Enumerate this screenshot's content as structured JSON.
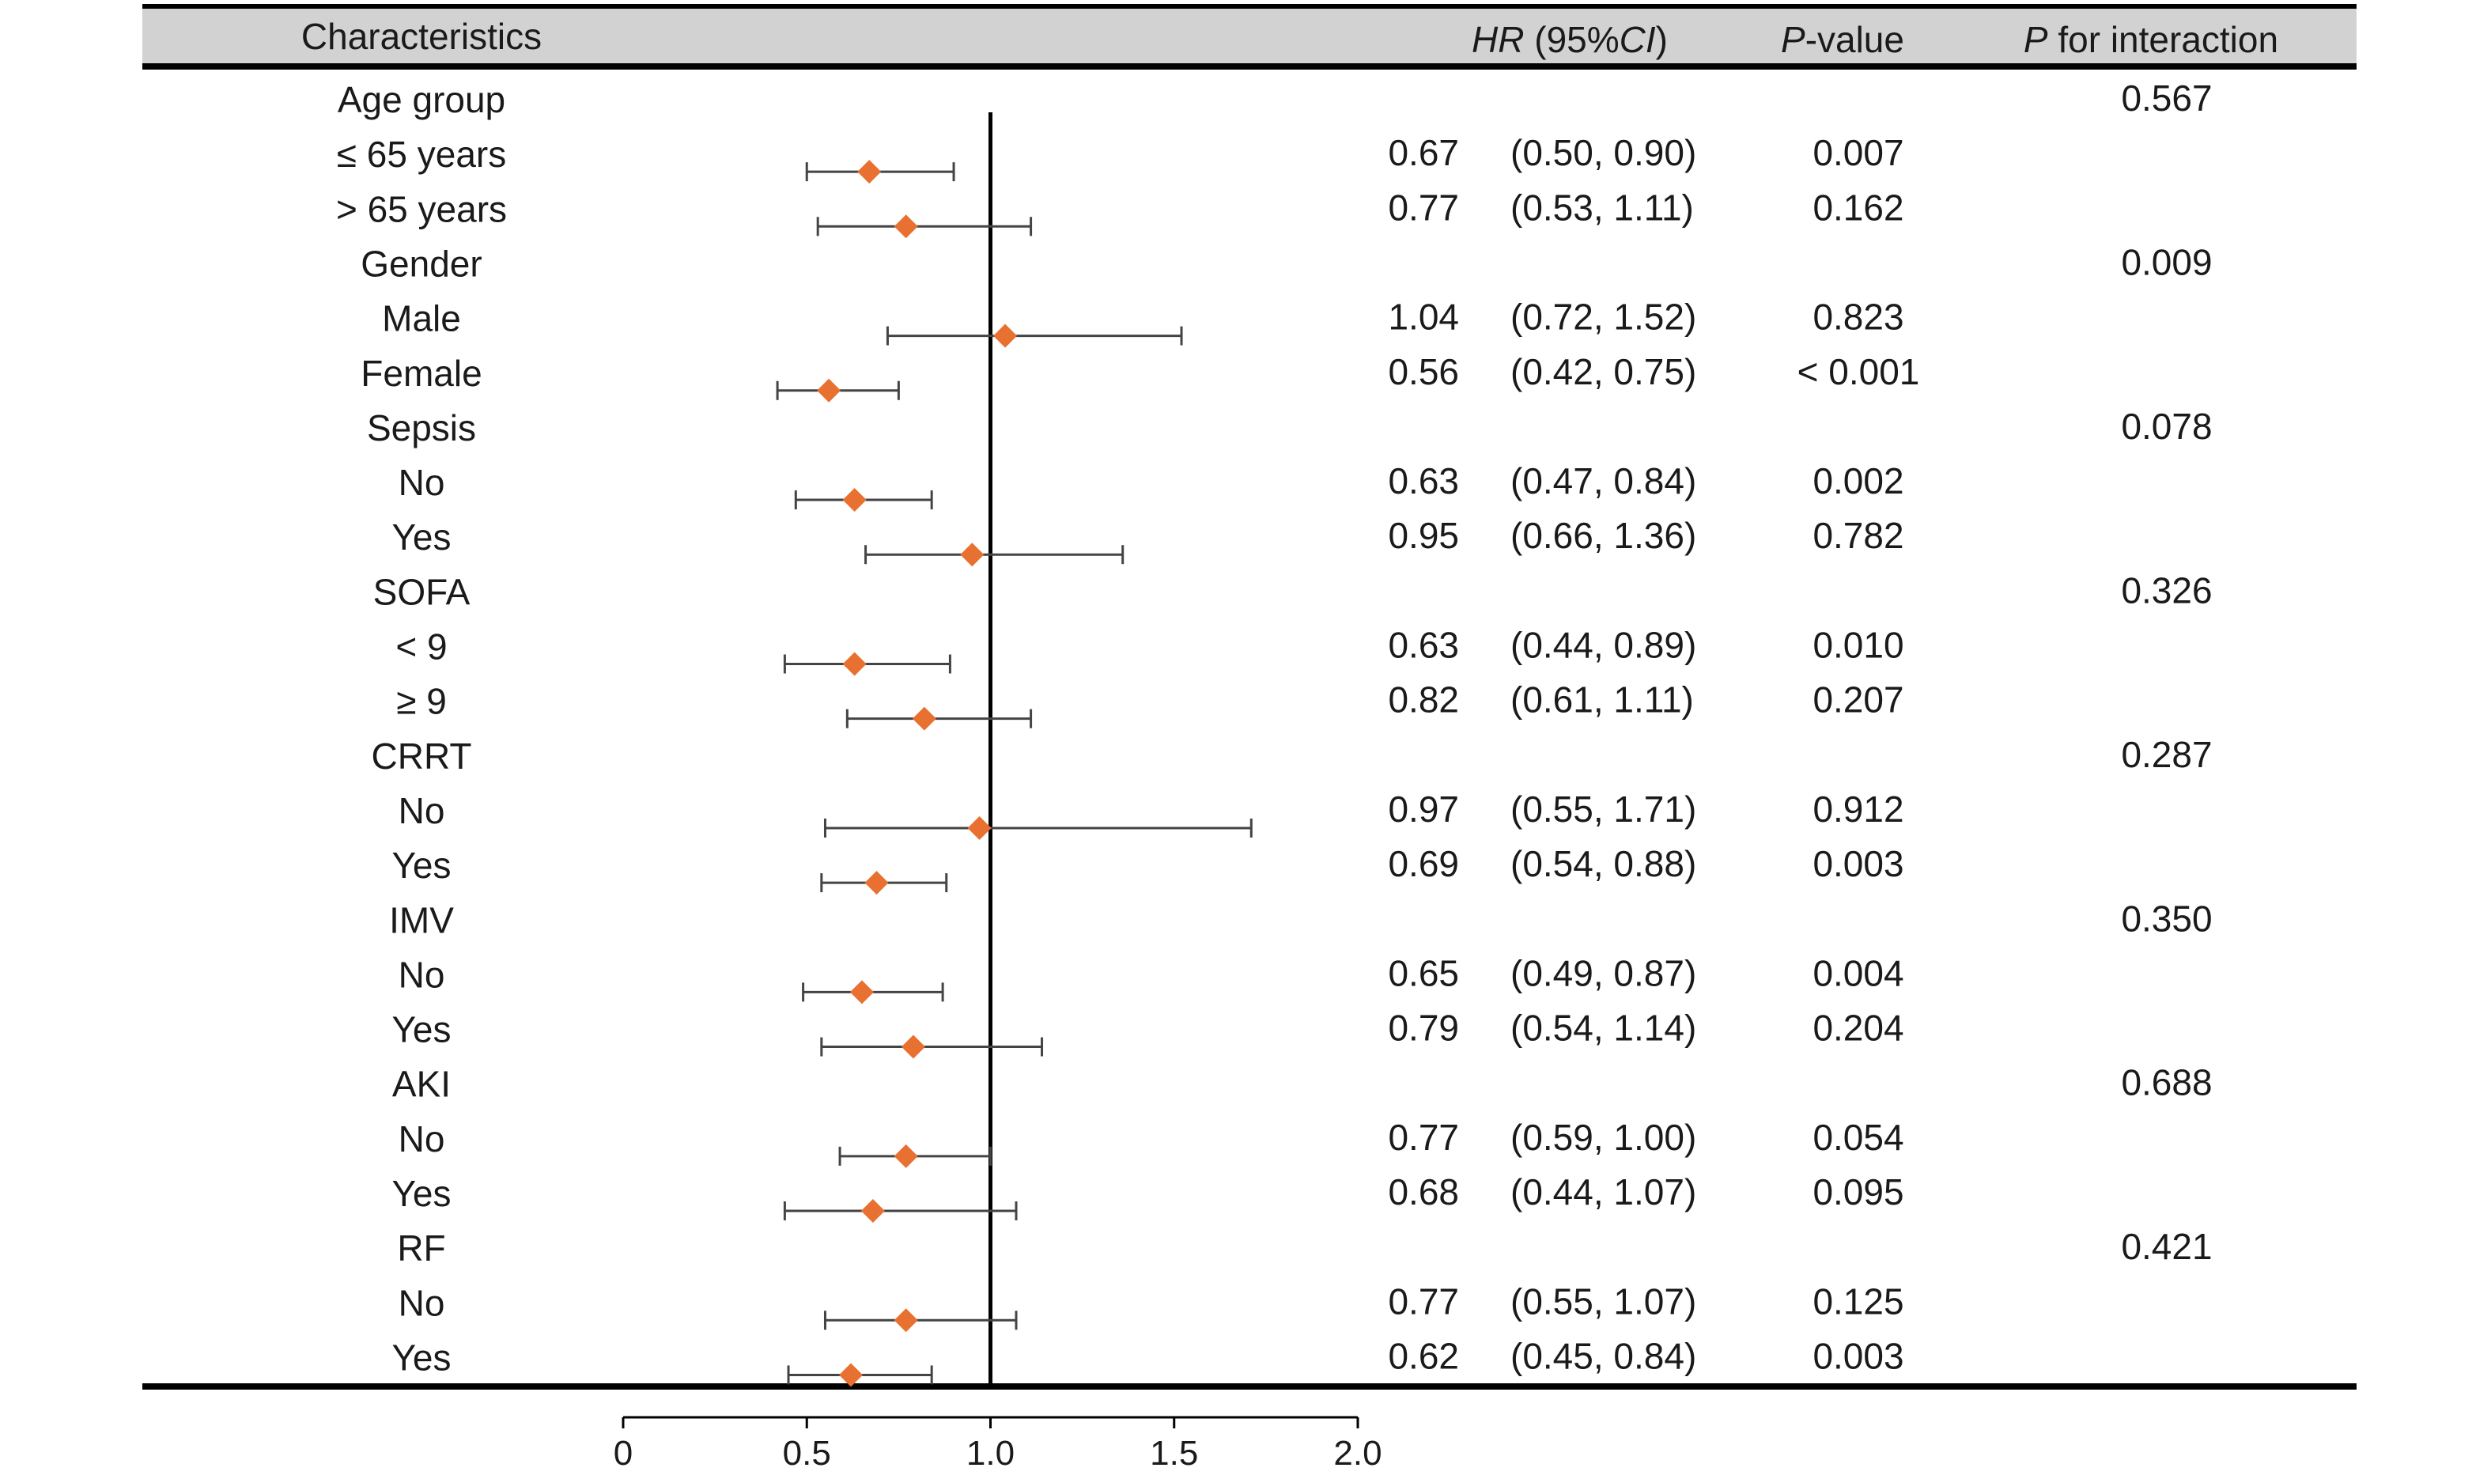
{
  "header": {
    "characteristics": "Characteristics",
    "hr_italic": "HR",
    "hr_rest": " (95%",
    "ci_italic": "CI",
    "ci_close": ")",
    "p_italic": "P",
    "p_rest": "-value",
    "pint_italic": "P",
    "pint_rest": " for interaction"
  },
  "colors": {
    "marker": "#e87030",
    "header_bg": "#d2d2d2",
    "line": "#000000",
    "whisker": "#444444"
  },
  "chart_data": {
    "type": "forest",
    "xlim": [
      0,
      2.0
    ],
    "xticks": [
      "0",
      "0.5",
      "1.0",
      "1.5",
      "2.0"
    ],
    "reference_line": 1.0,
    "rows": [
      {
        "label": "Age group",
        "group": true,
        "p_interaction": "0.567"
      },
      {
        "label": "≤ 65 years",
        "hr": 0.67,
        "lo": 0.5,
        "hi": 0.9,
        "hr_text": "0.67",
        "ci_text": "(0.50, 0.90)",
        "p": "0.007"
      },
      {
        "label": "> 65 years",
        "hr": 0.77,
        "lo": 0.53,
        "hi": 1.11,
        "hr_text": "0.77",
        "ci_text": "(0.53, 1.11)",
        "p": "0.162"
      },
      {
        "label": "Gender",
        "group": true,
        "p_interaction": "0.009"
      },
      {
        "label": "Male",
        "hr": 1.04,
        "lo": 0.72,
        "hi": 1.52,
        "hr_text": "1.04",
        "ci_text": "(0.72, 1.52)",
        "p": "0.823"
      },
      {
        "label": "Female",
        "hr": 0.56,
        "lo": 0.42,
        "hi": 0.75,
        "hr_text": "0.56",
        "ci_text": "(0.42, 0.75)",
        "p": "< 0.001"
      },
      {
        "label": "Sepsis",
        "group": true,
        "p_interaction": "0.078"
      },
      {
        "label": "No",
        "hr": 0.63,
        "lo": 0.47,
        "hi": 0.84,
        "hr_text": "0.63",
        "ci_text": "(0.47, 0.84)",
        "p": "0.002"
      },
      {
        "label": "Yes",
        "hr": 0.95,
        "lo": 0.66,
        "hi": 1.36,
        "hr_text": "0.95",
        "ci_text": "(0.66, 1.36)",
        "p": "0.782"
      },
      {
        "label": "SOFA",
        "group": true,
        "p_interaction": "0.326"
      },
      {
        "label": "< 9",
        "hr": 0.63,
        "lo": 0.44,
        "hi": 0.89,
        "hr_text": "0.63",
        "ci_text": "(0.44, 0.89)",
        "p": "0.010"
      },
      {
        "label": "≥ 9",
        "hr": 0.82,
        "lo": 0.61,
        "hi": 1.11,
        "hr_text": "0.82",
        "ci_text": "(0.61, 1.11)",
        "p": "0.207"
      },
      {
        "label": "CRRT",
        "group": true,
        "p_interaction": "0.287"
      },
      {
        "label": "No",
        "hr": 0.97,
        "lo": 0.55,
        "hi": 1.71,
        "hr_text": "0.97",
        "ci_text": "(0.55, 1.71)",
        "p": "0.912"
      },
      {
        "label": "Yes",
        "hr": 0.69,
        "lo": 0.54,
        "hi": 0.88,
        "hr_text": "0.69",
        "ci_text": "(0.54, 0.88)",
        "p": "0.003"
      },
      {
        "label": "IMV",
        "group": true,
        "p_interaction": "0.350"
      },
      {
        "label": "No",
        "hr": 0.65,
        "lo": 0.49,
        "hi": 0.87,
        "hr_text": "0.65",
        "ci_text": "(0.49, 0.87)",
        "p": "0.004"
      },
      {
        "label": "Yes",
        "hr": 0.79,
        "lo": 0.54,
        "hi": 1.14,
        "hr_text": "0.79",
        "ci_text": "(0.54, 1.14)",
        "p": "0.204"
      },
      {
        "label": "AKI",
        "group": true,
        "p_interaction": "0.688"
      },
      {
        "label": "No",
        "hr": 0.77,
        "lo": 0.59,
        "hi": 1.0,
        "hr_text": "0.77",
        "ci_text": "(0.59, 1.00)",
        "p": "0.054"
      },
      {
        "label": "Yes",
        "hr": 0.68,
        "lo": 0.44,
        "hi": 1.07,
        "hr_text": "0.68",
        "ci_text": "(0.44, 1.07)",
        "p": "0.095"
      },
      {
        "label": "RF",
        "group": true,
        "p_interaction": "0.421"
      },
      {
        "label": "No",
        "hr": 0.77,
        "lo": 0.55,
        "hi": 1.07,
        "hr_text": "0.77",
        "ci_text": "(0.55, 1.07)",
        "p": "0.125"
      },
      {
        "label": "Yes",
        "hr": 0.62,
        "lo": 0.45,
        "hi": 0.84,
        "hr_text": "0.62",
        "ci_text": "(0.45, 0.84)",
        "p": "0.003"
      }
    ]
  }
}
